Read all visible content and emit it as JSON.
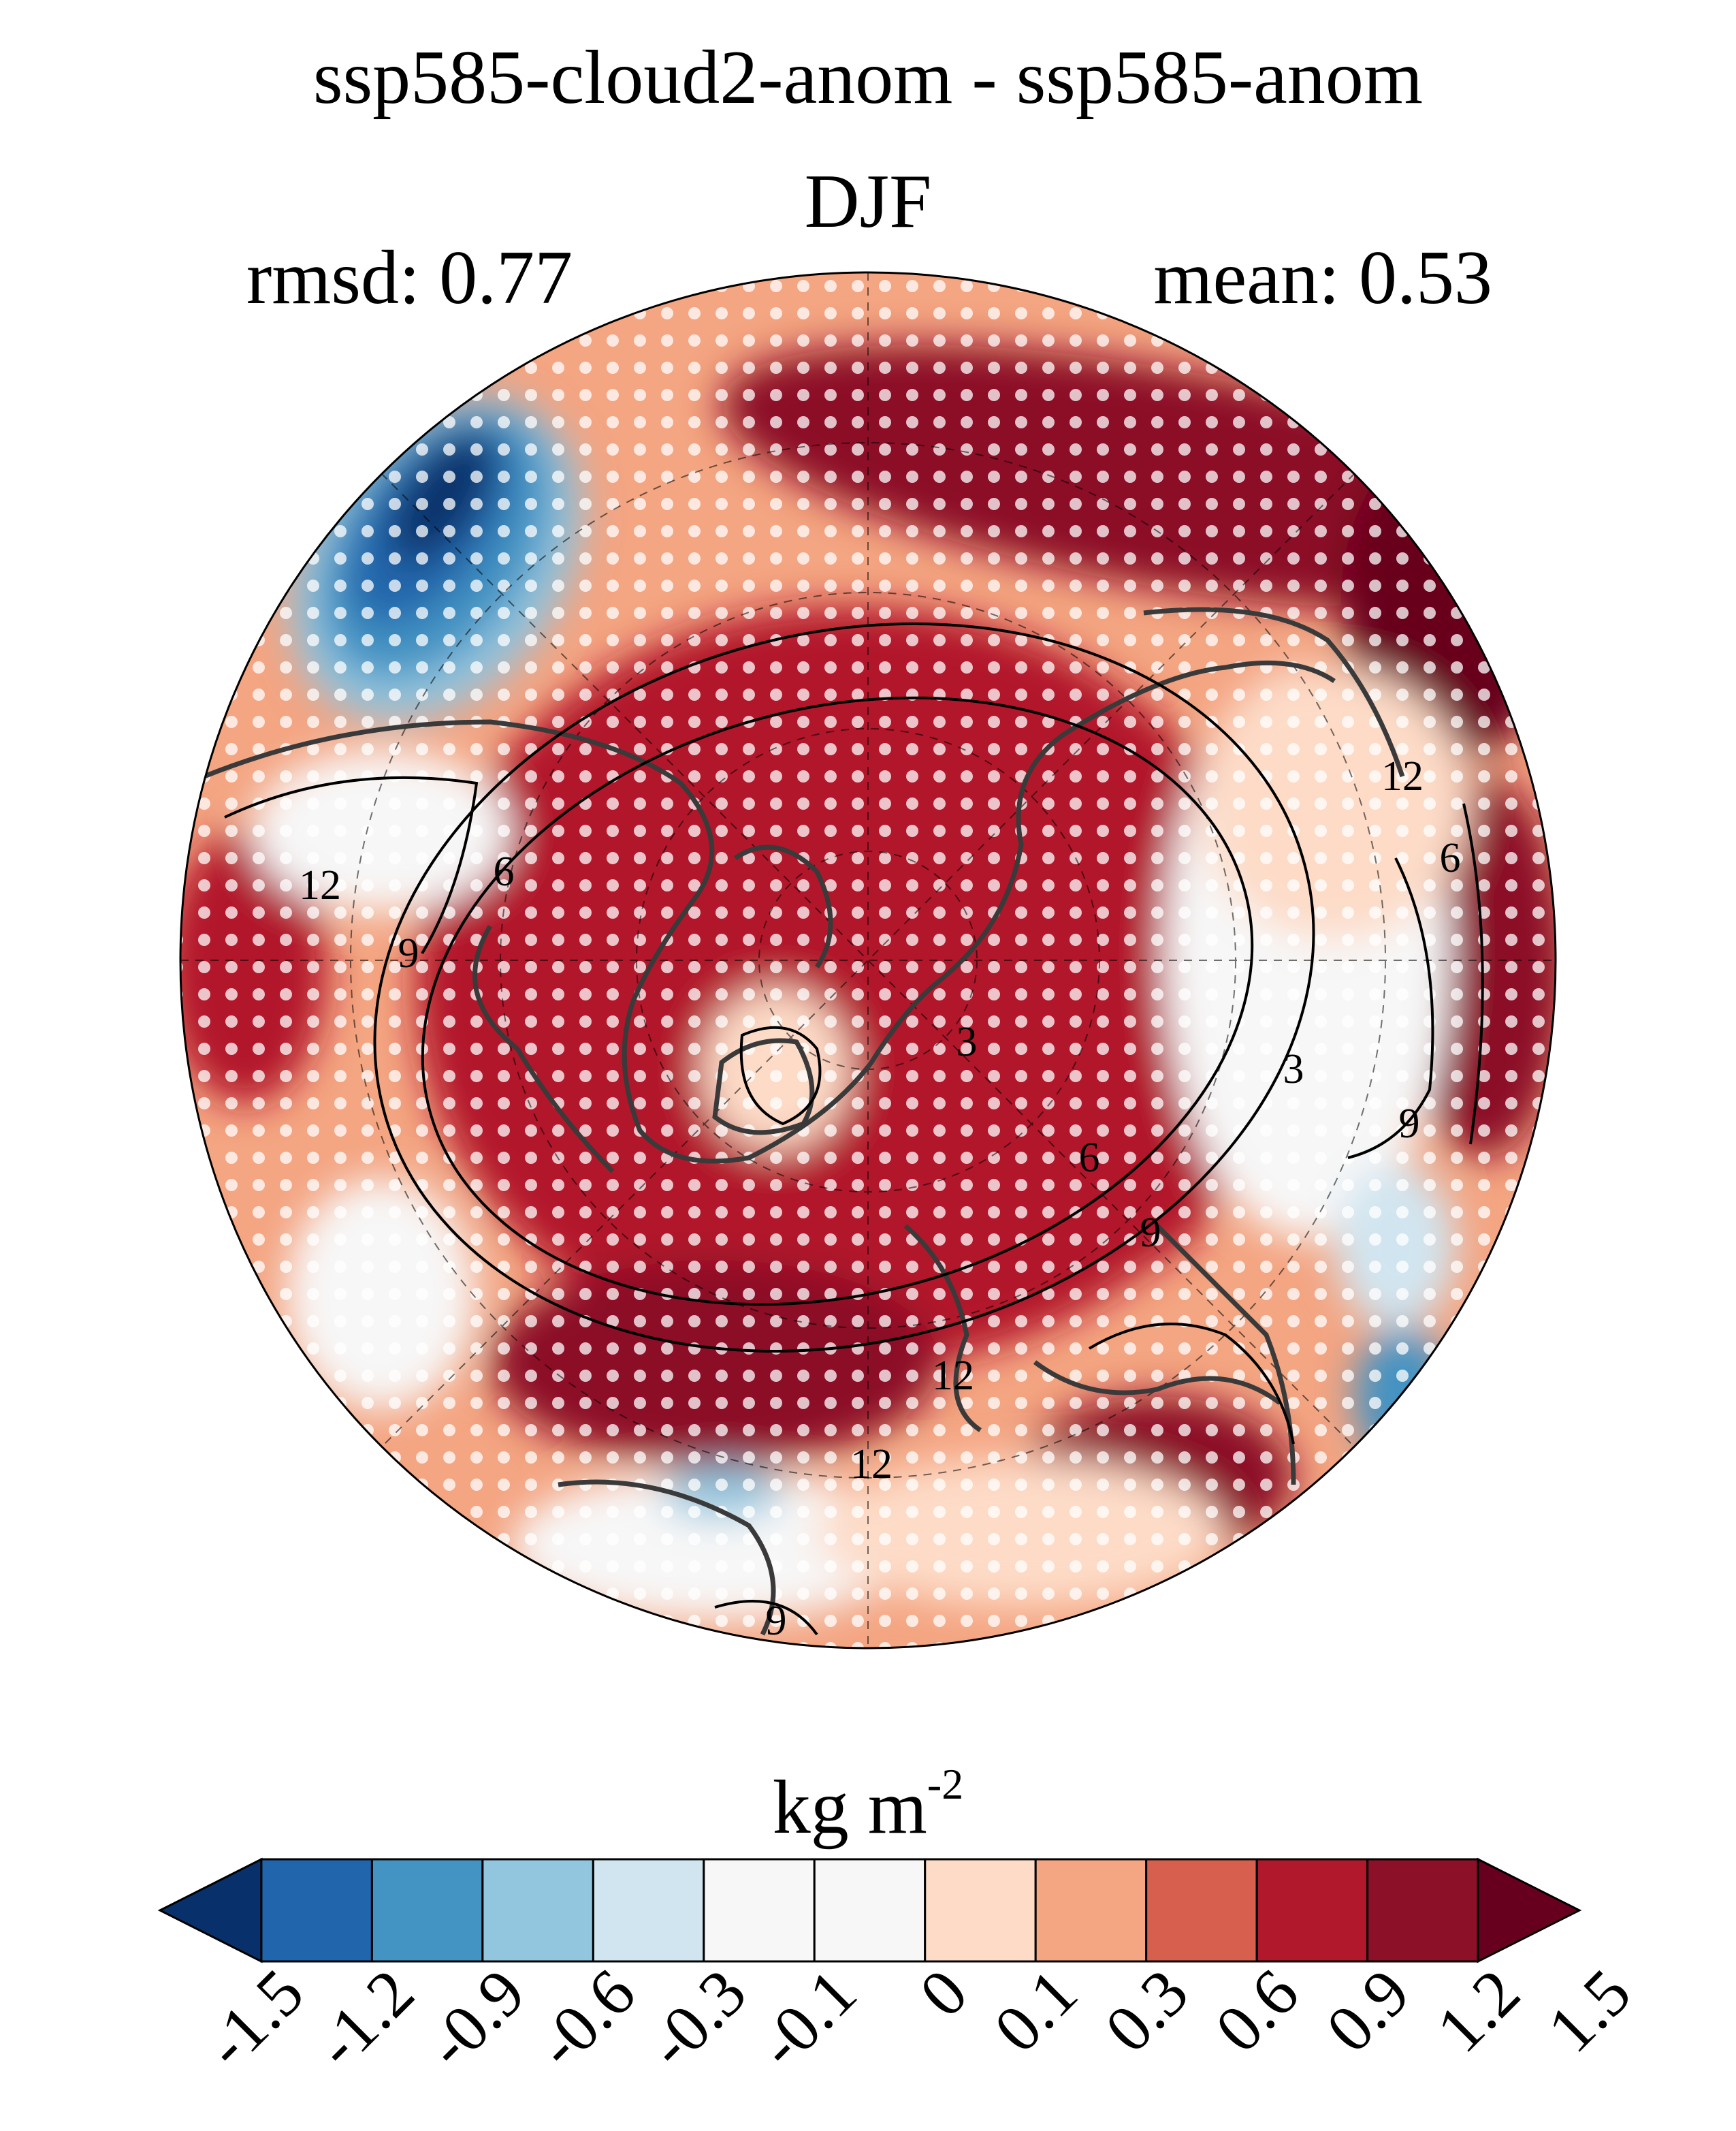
{
  "title": "ssp585-cloud2-anom - ssp585-anom",
  "season": "DJF",
  "stats": {
    "rmsd": "rmsd: 0.77",
    "mean": "mean: 0.53"
  },
  "colorbar": {
    "units": "kg m",
    "units_exp": "-2",
    "ticks": [
      "-1.5",
      "-1.2",
      "-0.9",
      "-0.6",
      "-0.3",
      "-0.1",
      "0",
      "0.1",
      "0.3",
      "0.6",
      "0.9",
      "1.2",
      "1.5"
    ],
    "colors": [
      "#08306b",
      "#2166ac",
      "#4393c3",
      "#92c5de",
      "#d1e5f0",
      "#f7f7f7",
      "#f7f7f7",
      "#fddbc7",
      "#f4a582",
      "#d6604d",
      "#b2182b",
      "#8b1028",
      "#67001f"
    ]
  },
  "map": {
    "projection": "north-polar-stereographic",
    "contour_labels": [
      "3",
      "3",
      "6",
      "6",
      "6",
      "9",
      "9",
      "9",
      "9",
      "12",
      "12",
      "12",
      "12"
    ],
    "stippling": "white dots"
  }
}
